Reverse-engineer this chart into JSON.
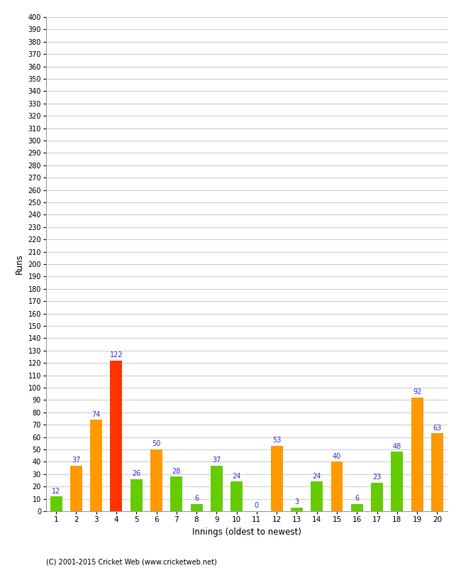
{
  "xlabel": "Innings (oldest to newest)",
  "ylabel": "Runs",
  "copyright": "(C) 2001-2015 Cricket Web (www.cricketweb.net)",
  "ylim": [
    0,
    400
  ],
  "yticks": [
    0,
    10,
    20,
    30,
    40,
    50,
    60,
    70,
    80,
    90,
    100,
    110,
    120,
    130,
    140,
    150,
    160,
    170,
    180,
    190,
    200,
    210,
    220,
    230,
    240,
    250,
    260,
    270,
    280,
    290,
    300,
    310,
    320,
    330,
    340,
    350,
    360,
    370,
    380,
    390,
    400
  ],
  "innings": [
    1,
    2,
    3,
    4,
    5,
    6,
    7,
    8,
    9,
    10,
    11,
    12,
    13,
    14,
    15,
    16,
    17,
    18,
    19,
    20
  ],
  "values": [
    12,
    37,
    74,
    122,
    26,
    50,
    28,
    6,
    37,
    24,
    0,
    53,
    3,
    24,
    40,
    6,
    23,
    48,
    92,
    63
  ],
  "colors": [
    "#66cc00",
    "#ff9900",
    "#ff9900",
    "#ff3300",
    "#66cc00",
    "#ff9900",
    "#66cc00",
    "#66cc00",
    "#66cc00",
    "#66cc00",
    "#66cc00",
    "#ff9900",
    "#66cc00",
    "#66cc00",
    "#ff9900",
    "#66cc00",
    "#66cc00",
    "#66cc00",
    "#ff9900",
    "#ff9900"
  ],
  "label_color": "#3333cc",
  "background_color": "#ffffff",
  "grid_color": "#cccccc",
  "bar_width": 0.6,
  "figsize": [
    6.5,
    8.0
  ],
  "dpi": 100
}
